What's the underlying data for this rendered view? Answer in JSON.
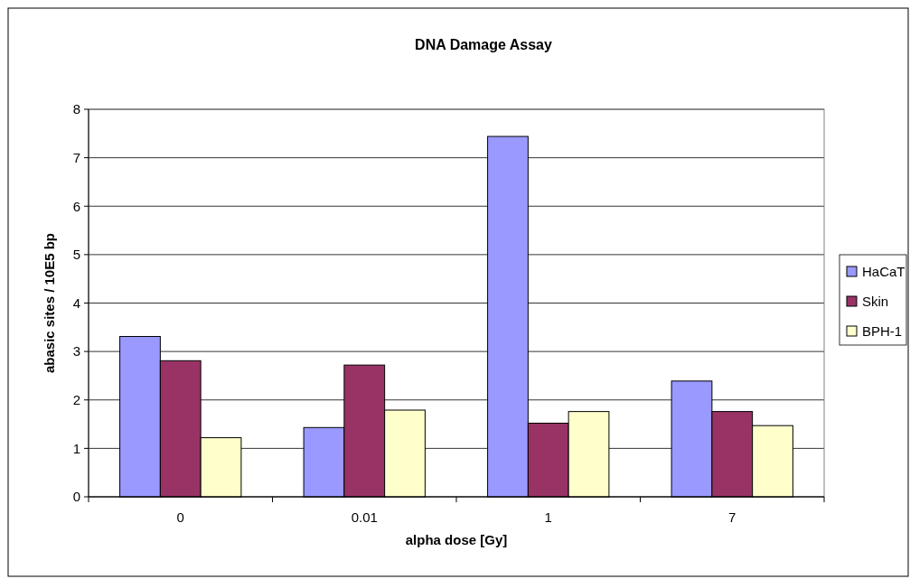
{
  "chart_data": {
    "type": "bar",
    "title": "DNA Damage Assay",
    "xlabel": "alpha dose [Gy]",
    "ylabel": "abasic sites / 10E5 bp",
    "categories": [
      "0",
      "0.01",
      "1",
      "7"
    ],
    "series": [
      {
        "name": "HaCaT",
        "color": "#9999ff",
        "values": [
          3.31,
          1.43,
          7.44,
          2.39
        ]
      },
      {
        "name": "Skin",
        "color": "#993366",
        "values": [
          2.81,
          2.72,
          1.52,
          1.76
        ]
      },
      {
        "name": "BPH-1",
        "color": "#ffffcc",
        "values": [
          1.22,
          1.79,
          1.76,
          1.47
        ]
      }
    ],
    "ylim": [
      0,
      8
    ],
    "yticks": [
      0,
      1,
      2,
      3,
      4,
      5,
      6,
      7,
      8
    ],
    "grid": "y",
    "legend": "right"
  }
}
